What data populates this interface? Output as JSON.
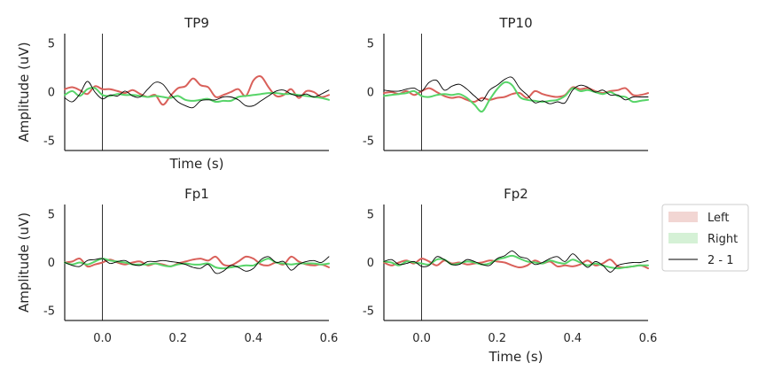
{
  "figure": {
    "colors": {
      "left": "#d9605a",
      "right": "#57d468",
      "diff": "#000000",
      "left_fill": "#f2d6d3",
      "right_fill": "#d5f1d6"
    }
  },
  "legend": {
    "items": [
      {
        "label": "Left",
        "color": "#d9605a"
      },
      {
        "label": "Right",
        "color": "#57d468"
      },
      {
        "label": "2 - 1",
        "color": "#000000"
      }
    ]
  },
  "chart_data": [
    {
      "type": "line",
      "title": "TP9",
      "xlabel": "Time (s)",
      "ylabel": "Amplitude (uV)",
      "xlim": [
        -0.1,
        0.6
      ],
      "ylim": [
        -6,
        6
      ],
      "xticks": [],
      "yticks": [
        -5,
        0,
        5
      ],
      "vline": 0.0,
      "series": [
        {
          "name": "Left",
          "color": "#d9605a",
          "x": [
            -0.1,
            -0.08,
            -0.06,
            -0.04,
            -0.02,
            0.0,
            0.02,
            0.04,
            0.06,
            0.08,
            0.1,
            0.12,
            0.14,
            0.16,
            0.18,
            0.2,
            0.22,
            0.24,
            0.26,
            0.28,
            0.3,
            0.32,
            0.34,
            0.36,
            0.38,
            0.4,
            0.42,
            0.44,
            0.46,
            0.48,
            0.5,
            0.52,
            0.54,
            0.56,
            0.58,
            0.6
          ],
          "y": [
            0.3,
            0.5,
            0.2,
            -0.2,
            0.6,
            0.3,
            0.3,
            0.1,
            -0.1,
            0.2,
            -0.2,
            -0.5,
            -0.3,
            -1.3,
            -0.4,
            0.4,
            0.6,
            1.4,
            0.7,
            0.5,
            -0.5,
            -0.3,
            0.0,
            0.3,
            -0.4,
            1.2,
            1.6,
            0.5,
            -0.4,
            -0.3,
            0.3,
            -0.6,
            0.1,
            0.0,
            -0.5,
            -0.3
          ]
        },
        {
          "name": "Right",
          "color": "#57d468",
          "x": [
            -0.1,
            -0.08,
            -0.06,
            -0.04,
            -0.02,
            0.0,
            0.02,
            0.04,
            0.06,
            0.08,
            0.1,
            0.12,
            0.14,
            0.16,
            0.18,
            0.2,
            0.22,
            0.24,
            0.26,
            0.28,
            0.3,
            0.32,
            0.34,
            0.36,
            0.38,
            0.4,
            0.42,
            0.44,
            0.46,
            0.48,
            0.5,
            0.52,
            0.54,
            0.56,
            0.58,
            0.6
          ],
          "y": [
            -0.3,
            0.1,
            -0.4,
            0.3,
            0.4,
            -0.3,
            -0.4,
            -0.2,
            -0.3,
            -0.3,
            -0.4,
            -0.5,
            -0.4,
            -0.5,
            -0.6,
            -0.4,
            -0.8,
            -0.9,
            -0.8,
            -0.7,
            -1.0,
            -0.9,
            -0.9,
            -0.5,
            -0.4,
            -0.3,
            -0.2,
            -0.1,
            -0.1,
            -0.2,
            -0.2,
            -0.3,
            -0.4,
            -0.5,
            -0.6,
            -0.8
          ]
        },
        {
          "name": "2 - 1",
          "color": "#000000",
          "x": [
            -0.1,
            -0.08,
            -0.06,
            -0.04,
            -0.02,
            0.0,
            0.02,
            0.04,
            0.06,
            0.08,
            0.1,
            0.12,
            0.14,
            0.16,
            0.18,
            0.2,
            0.22,
            0.24,
            0.26,
            0.28,
            0.3,
            0.32,
            0.34,
            0.36,
            0.38,
            0.4,
            0.42,
            0.44,
            0.46,
            0.48,
            0.5,
            0.52,
            0.54,
            0.56,
            0.58,
            0.6
          ],
          "y": [
            -0.6,
            -1.0,
            -0.2,
            1.1,
            0.0,
            -0.7,
            -0.3,
            -0.4,
            0.1,
            -0.4,
            -0.5,
            0.3,
            1.0,
            0.8,
            -0.2,
            -1.0,
            -1.4,
            -1.6,
            -0.9,
            -0.8,
            -0.8,
            -0.5,
            -0.5,
            -0.8,
            -1.4,
            -1.4,
            -0.9,
            -0.4,
            0.1,
            0.2,
            -0.2,
            -0.4,
            -0.2,
            -0.5,
            -0.2,
            0.2
          ]
        }
      ]
    },
    {
      "type": "line",
      "title": "TP10",
      "xlabel": "",
      "ylabel": "",
      "xlim": [
        -0.1,
        0.6
      ],
      "ylim": [
        -6,
        6
      ],
      "xticks": [],
      "yticks": [
        -5,
        0,
        5
      ],
      "vline": 0.0,
      "series": [
        {
          "name": "Left",
          "color": "#d9605a",
          "x": [
            -0.1,
            -0.08,
            -0.06,
            -0.04,
            -0.02,
            0.0,
            0.02,
            0.04,
            0.06,
            0.08,
            0.1,
            0.12,
            0.14,
            0.16,
            0.18,
            0.2,
            0.22,
            0.24,
            0.26,
            0.28,
            0.3,
            0.32,
            0.34,
            0.36,
            0.38,
            0.4,
            0.42,
            0.44,
            0.46,
            0.48,
            0.5,
            0.52,
            0.54,
            0.56,
            0.58,
            0.6
          ],
          "y": [
            -0.1,
            0.0,
            -0.2,
            0.1,
            -0.3,
            0.1,
            0.4,
            0.0,
            -0.4,
            -0.6,
            -0.5,
            -0.8,
            -1.0,
            -0.6,
            -0.8,
            -0.6,
            -0.5,
            -0.2,
            -0.1,
            -0.6,
            0.1,
            -0.2,
            -0.4,
            -0.5,
            -0.3,
            0.5,
            0.3,
            0.4,
            0.1,
            -0.1,
            0.1,
            0.2,
            0.4,
            -0.3,
            -0.3,
            -0.1
          ]
        },
        {
          "name": "Right",
          "color": "#57d468",
          "x": [
            -0.1,
            -0.08,
            -0.06,
            -0.04,
            -0.02,
            0.0,
            0.02,
            0.04,
            0.06,
            0.08,
            0.1,
            0.12,
            0.14,
            0.16,
            0.18,
            0.2,
            0.22,
            0.24,
            0.26,
            0.28,
            0.3,
            0.32,
            0.34,
            0.36,
            0.38,
            0.4,
            0.42,
            0.44,
            0.46,
            0.48,
            0.5,
            0.52,
            0.54,
            0.56,
            0.58,
            0.6
          ],
          "y": [
            -0.4,
            -0.3,
            -0.2,
            -0.1,
            0.1,
            -0.4,
            -0.5,
            -0.3,
            -0.2,
            -0.3,
            -0.2,
            -0.6,
            -1.3,
            -2.0,
            -0.8,
            0.3,
            1.0,
            0.7,
            -0.5,
            -0.8,
            -0.9,
            -1.0,
            -0.9,
            -0.8,
            -0.4,
            0.4,
            0.1,
            0.2,
            0.0,
            -0.2,
            0.0,
            -0.4,
            -0.5,
            -1.0,
            -0.9,
            -0.8
          ]
        },
        {
          "name": "2 - 1",
          "color": "#000000",
          "x": [
            -0.1,
            -0.08,
            -0.06,
            -0.04,
            -0.02,
            0.0,
            0.02,
            0.04,
            0.06,
            0.08,
            0.1,
            0.12,
            0.14,
            0.16,
            0.18,
            0.2,
            0.22,
            0.24,
            0.26,
            0.28,
            0.3,
            0.32,
            0.34,
            0.36,
            0.38,
            0.4,
            0.42,
            0.44,
            0.46,
            0.48,
            0.5,
            0.52,
            0.54,
            0.56,
            0.58,
            0.6
          ],
          "y": [
            0.2,
            0.1,
            0.1,
            0.3,
            0.4,
            0.1,
            1.0,
            1.2,
            0.2,
            0.6,
            0.8,
            0.3,
            -0.4,
            -0.9,
            0.2,
            0.7,
            1.3,
            1.5,
            0.4,
            -0.3,
            -1.1,
            -0.9,
            -1.2,
            -1.0,
            -1.1,
            0.2,
            0.7,
            0.5,
            0.0,
            0.2,
            -0.3,
            -0.3,
            -0.8,
            -0.5,
            -0.5,
            -0.5
          ]
        }
      ]
    },
    {
      "type": "line",
      "title": "Fp1",
      "xlabel": "",
      "ylabel": "Amplitude (uV)",
      "xlim": [
        -0.1,
        0.6
      ],
      "ylim": [
        -6,
        6
      ],
      "xticks": [
        0.0,
        0.2,
        0.4,
        0.6
      ],
      "yticks": [
        -5,
        0,
        5
      ],
      "vline": 0.0,
      "series": [
        {
          "name": "Left",
          "color": "#d9605a",
          "x": [
            -0.1,
            -0.08,
            -0.06,
            -0.04,
            -0.02,
            0.0,
            0.02,
            0.04,
            0.06,
            0.08,
            0.1,
            0.12,
            0.14,
            0.16,
            0.18,
            0.2,
            0.22,
            0.24,
            0.26,
            0.28,
            0.3,
            0.32,
            0.34,
            0.36,
            0.38,
            0.4,
            0.42,
            0.44,
            0.46,
            0.48,
            0.5,
            0.52,
            0.54,
            0.56,
            0.58,
            0.6
          ],
          "y": [
            0.0,
            0.1,
            0.4,
            -0.4,
            -0.2,
            0.0,
            0.3,
            0.0,
            -0.2,
            0.0,
            0.1,
            -0.3,
            -0.1,
            -0.2,
            -0.4,
            -0.1,
            0.1,
            0.3,
            0.4,
            0.2,
            0.6,
            -0.2,
            -0.3,
            0.1,
            0.6,
            0.4,
            -0.2,
            -0.3,
            0.0,
            -0.2,
            0.6,
            0.1,
            -0.2,
            -0.3,
            -0.2,
            -0.5
          ]
        },
        {
          "name": "Right",
          "color": "#57d468",
          "x": [
            -0.1,
            -0.08,
            -0.06,
            -0.04,
            -0.02,
            0.0,
            0.02,
            0.04,
            0.06,
            0.08,
            0.1,
            0.12,
            0.14,
            0.16,
            0.18,
            0.2,
            0.22,
            0.24,
            0.26,
            0.28,
            0.3,
            0.32,
            0.34,
            0.36,
            0.38,
            0.4,
            0.42,
            0.44,
            0.46,
            0.48,
            0.5,
            0.52,
            0.54,
            0.56,
            0.58,
            0.6
          ],
          "y": [
            0.0,
            -0.2,
            0.0,
            -0.2,
            0.1,
            0.4,
            0.2,
            0.1,
            0.0,
            -0.2,
            -0.2,
            -0.2,
            -0.1,
            -0.3,
            -0.4,
            -0.2,
            -0.1,
            -0.2,
            -0.2,
            -0.1,
            -0.5,
            -0.6,
            -0.5,
            -0.4,
            -0.3,
            -0.3,
            0.1,
            0.4,
            0.0,
            -0.1,
            -0.2,
            -0.1,
            -0.1,
            -0.1,
            -0.2,
            -0.1
          ]
        },
        {
          "name": "2 - 1",
          "color": "#000000",
          "x": [
            -0.1,
            -0.08,
            -0.06,
            -0.04,
            -0.02,
            0.0,
            0.02,
            0.04,
            0.06,
            0.08,
            0.1,
            0.12,
            0.14,
            0.16,
            0.18,
            0.2,
            0.22,
            0.24,
            0.26,
            0.28,
            0.3,
            0.32,
            0.34,
            0.36,
            0.38,
            0.4,
            0.42,
            0.44,
            0.46,
            0.48,
            0.5,
            0.52,
            0.54,
            0.56,
            0.58,
            0.6
          ],
          "y": [
            0.0,
            -0.3,
            -0.4,
            0.2,
            0.3,
            0.4,
            -0.1,
            0.1,
            0.2,
            -0.2,
            -0.3,
            0.1,
            0.1,
            0.2,
            0.1,
            0.0,
            -0.2,
            -0.5,
            -0.6,
            -0.2,
            -1.1,
            -0.9,
            -0.3,
            -0.5,
            -0.9,
            -0.6,
            0.3,
            0.6,
            0.0,
            0.1,
            -0.8,
            -0.2,
            0.1,
            0.2,
            0.0,
            0.6
          ]
        }
      ]
    },
    {
      "type": "line",
      "title": "Fp2",
      "xlabel": "Time (s)",
      "ylabel": "",
      "xlim": [
        -0.1,
        0.6
      ],
      "ylim": [
        -6,
        6
      ],
      "xticks": [
        0.0,
        0.2,
        0.4,
        0.6
      ],
      "yticks": [
        -5,
        0,
        5
      ],
      "vline": 0.0,
      "series": [
        {
          "name": "Left",
          "color": "#d9605a",
          "x": [
            -0.1,
            -0.08,
            -0.06,
            -0.04,
            -0.02,
            0.0,
            0.02,
            0.04,
            0.06,
            0.08,
            0.1,
            0.12,
            0.14,
            0.16,
            0.18,
            0.2,
            0.22,
            0.24,
            0.26,
            0.28,
            0.3,
            0.32,
            0.34,
            0.36,
            0.38,
            0.4,
            0.42,
            0.44,
            0.46,
            0.48,
            0.5,
            0.52,
            0.54,
            0.56,
            0.58,
            0.6
          ],
          "y": [
            0.0,
            -0.3,
            0.0,
            0.2,
            -0.1,
            0.4,
            0.1,
            -0.3,
            0.2,
            -0.1,
            0.0,
            -0.2,
            -0.1,
            0.0,
            0.2,
            0.1,
            0.0,
            -0.3,
            -0.5,
            -0.3,
            0.2,
            -0.1,
            0.1,
            -0.4,
            -0.3,
            -0.4,
            -0.2,
            0.2,
            -0.3,
            -0.1,
            0.3,
            -0.4,
            -0.5,
            -0.4,
            -0.3,
            -0.6
          ]
        },
        {
          "name": "Right",
          "color": "#57d468",
          "x": [
            -0.1,
            -0.08,
            -0.06,
            -0.04,
            -0.02,
            0.0,
            0.02,
            0.04,
            0.06,
            0.08,
            0.1,
            0.12,
            0.14,
            0.16,
            0.18,
            0.2,
            0.22,
            0.24,
            0.26,
            0.28,
            0.3,
            0.32,
            0.34,
            0.36,
            0.38,
            0.4,
            0.42,
            0.44,
            0.46,
            0.48,
            0.5,
            0.52,
            0.54,
            0.56,
            0.58,
            0.6
          ],
          "y": [
            0.1,
            0.0,
            -0.3,
            0.1,
            0.0,
            -0.1,
            -0.2,
            0.3,
            0.3,
            -0.2,
            -0.1,
            0.1,
            0.0,
            -0.2,
            -0.1,
            0.3,
            0.5,
            0.7,
            0.4,
            0.1,
            0.0,
            -0.1,
            0.2,
            0.0,
            -0.1,
            0.3,
            0.0,
            -0.3,
            -0.1,
            -0.3,
            -0.5,
            -0.6,
            -0.5,
            -0.4,
            -0.3,
            -0.3
          ]
        },
        {
          "name": "2 - 1",
          "color": "#000000",
          "x": [
            -0.1,
            -0.08,
            -0.06,
            -0.04,
            -0.02,
            0.0,
            0.02,
            0.04,
            0.06,
            0.08,
            0.1,
            0.12,
            0.14,
            0.16,
            0.18,
            0.2,
            0.22,
            0.24,
            0.26,
            0.28,
            0.3,
            0.32,
            0.34,
            0.36,
            0.38,
            0.4,
            0.42,
            0.44,
            0.46,
            0.48,
            0.5,
            0.52,
            0.54,
            0.56,
            0.58,
            0.6
          ],
          "y": [
            0.1,
            0.3,
            -0.2,
            -0.1,
            0.1,
            -0.4,
            -0.3,
            0.6,
            0.3,
            -0.2,
            -0.2,
            0.3,
            0.1,
            -0.2,
            -0.3,
            0.4,
            0.7,
            1.2,
            0.6,
            0.4,
            -0.2,
            0.0,
            0.4,
            0.6,
            0.1,
            0.9,
            0.2,
            -0.5,
            0.1,
            -0.3,
            -1.0,
            -0.3,
            -0.1,
            0.0,
            0.0,
            0.2
          ]
        }
      ]
    }
  ]
}
